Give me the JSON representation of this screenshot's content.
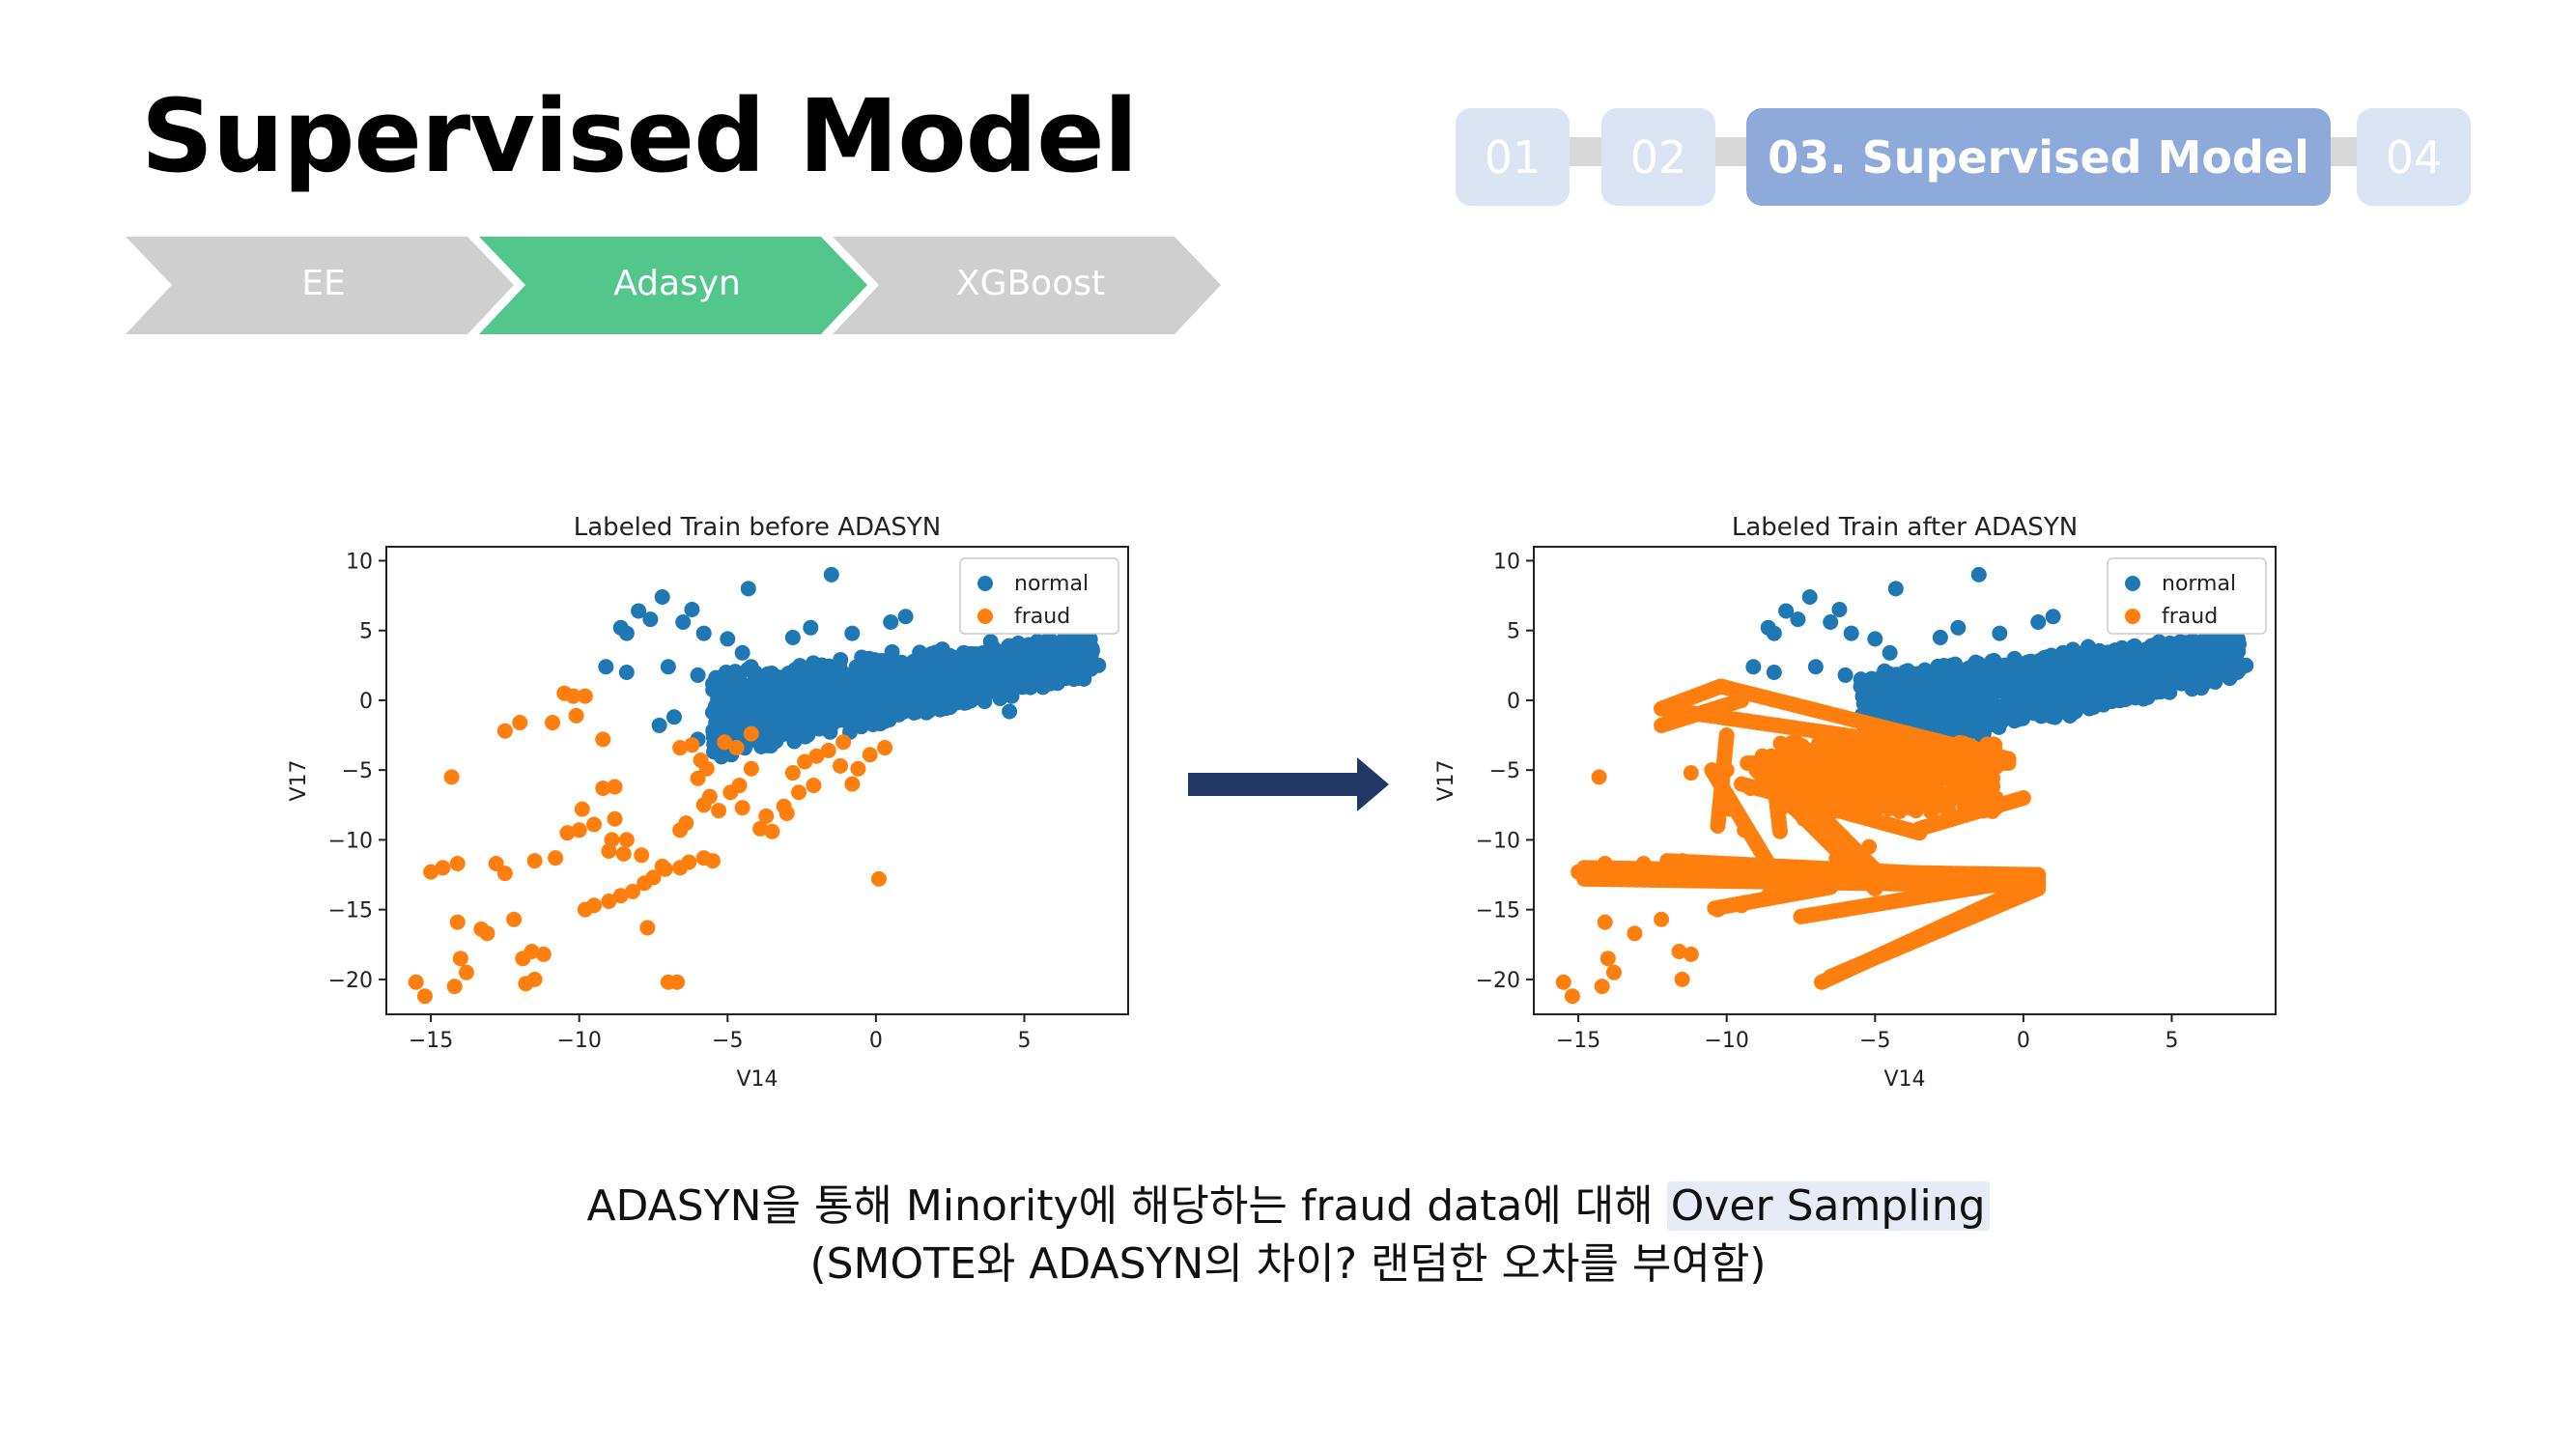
{
  "slide": {
    "title": "Supervised Model",
    "tracker": [
      {
        "label": "01",
        "active": false
      },
      {
        "label": "02",
        "active": false
      },
      {
        "label": "03. Supervised Model",
        "active": true
      },
      {
        "label": "04",
        "active": false
      }
    ],
    "steps": [
      {
        "label": "EE",
        "active": false
      },
      {
        "label": "Adasyn",
        "active": true
      },
      {
        "label": "XGBoost",
        "active": false
      }
    ],
    "colors": {
      "step_active": "#52c68b",
      "step_inactive": "#d0cfd0",
      "tracker_active": "#8eaadb",
      "tracker_inactive": "#dbe4f3",
      "arrow": "#1f3864",
      "normal": "#1f77b4",
      "fraud": "#ff7f0e"
    },
    "caption_line1_prefix": "ADASYN을 통해 Minority에 해당하는 fraud data에 대해",
    "caption_line1_highlight": "Over Sampling",
    "caption_line2": "(SMOTE와 ADASYN의 차이? 랜덤한 오차를 부여함)",
    "arrow_icon": "right-arrow-icon"
  },
  "chart_data": [
    {
      "type": "scatter",
      "title": "Labeled Train before ADASYN",
      "xlabel": "V14",
      "ylabel": "V17",
      "xlim": [
        -16.5,
        8.5
      ],
      "ylim": [
        -22.5,
        11
      ],
      "xticks": [
        -15,
        -10,
        -5,
        0,
        5
      ],
      "yticks": [
        10,
        5,
        0,
        -5,
        -10,
        -15,
        -20
      ],
      "legend": "top-right",
      "series": [
        {
          "name": "normal",
          "color": "#1f77b4",
          "points": [
            [
              -1.5,
              9
            ],
            [
              -4.3,
              8
            ],
            [
              -7.2,
              7.4
            ],
            [
              -8,
              6.4
            ],
            [
              -7.6,
              5.8
            ],
            [
              -8.6,
              5.2
            ],
            [
              -8.4,
              4.8
            ],
            [
              -6.2,
              6.5
            ],
            [
              -6.5,
              5.6
            ],
            [
              -5.8,
              4.8
            ],
            [
              -5,
              4.4
            ],
            [
              -4.5,
              3.4
            ],
            [
              -2.8,
              4.5
            ],
            [
              -2.2,
              5.2
            ],
            [
              -9.1,
              2.4
            ],
            [
              -8.4,
              2
            ],
            [
              -7,
              2.4
            ],
            [
              -6,
              1.8
            ],
            [
              -5.2,
              0.4
            ],
            [
              -6.8,
              -1.2
            ],
            [
              -7.3,
              -1.8
            ],
            [
              -6,
              -2.8
            ],
            [
              -2.5,
              -1.5
            ],
            [
              0.3,
              -1.5
            ],
            [
              1.2,
              -0.5
            ],
            [
              2.5,
              -0.5
            ],
            [
              4.5,
              -0.8
            ],
            [
              7.5,
              2.5
            ],
            [
              6,
              2.8
            ],
            [
              -0.8,
              4.8
            ],
            [
              0.5,
              5.6
            ],
            [
              1,
              6
            ]
          ]
        },
        {
          "name": "fraud",
          "color": "#ff7f0e",
          "points": [
            [
              -10.5,
              0.5
            ],
            [
              -10.2,
              0.3
            ],
            [
              -9.8,
              0.3
            ],
            [
              -10.1,
              -1.1
            ],
            [
              -10.9,
              -1.6
            ],
            [
              -12,
              -1.6
            ],
            [
              -12.5,
              -2.2
            ],
            [
              -9.2,
              -2.8
            ],
            [
              -14.3,
              -5.5
            ],
            [
              -15,
              -12.3
            ],
            [
              -14.6,
              -12
            ],
            [
              -14.1,
              -11.7
            ],
            [
              -12.8,
              -11.7
            ],
            [
              -12.5,
              -12.4
            ],
            [
              -11.5,
              -11.5
            ],
            [
              -10.8,
              -11.3
            ],
            [
              -10.4,
              -9.5
            ],
            [
              -10,
              -9.3
            ],
            [
              -9.5,
              -8.9
            ],
            [
              -8.8,
              -8.5
            ],
            [
              -9.9,
              -7.8
            ],
            [
              -9.2,
              -6.3
            ],
            [
              -8.8,
              -6.2
            ],
            [
              -9.8,
              -15
            ],
            [
              -9.5,
              -14.7
            ],
            [
              -9,
              -14.4
            ],
            [
              -8.6,
              -14
            ],
            [
              -8.2,
              -13.7
            ],
            [
              -7.8,
              -13.1
            ],
            [
              -7.5,
              -12.7
            ],
            [
              -7.9,
              -11.1
            ],
            [
              -8.5,
              -11
            ],
            [
              -8.4,
              -10
            ],
            [
              -8.9,
              -10
            ],
            [
              -9,
              -10.8
            ],
            [
              -14.1,
              -15.9
            ],
            [
              -13.1,
              -16.7
            ],
            [
              -13.3,
              -16.4
            ],
            [
              -12.2,
              -15.7
            ],
            [
              -14,
              -18.5
            ],
            [
              -13.8,
              -19.5
            ],
            [
              -14.2,
              -20.5
            ],
            [
              -15.5,
              -20.2
            ],
            [
              -15.2,
              -21.2
            ],
            [
              -11.6,
              -18
            ],
            [
              -11.2,
              -18.2
            ],
            [
              -11.9,
              -18.5
            ],
            [
              -11.5,
              -20
            ],
            [
              -11.8,
              -20.3
            ],
            [
              -7.7,
              -16.3
            ],
            [
              -7,
              -20.2
            ],
            [
              -6.7,
              -20.2
            ],
            [
              -7.1,
              -12.1
            ],
            [
              -7.2,
              -11.9
            ],
            [
              -6.6,
              -12
            ],
            [
              -6.3,
              -11.6
            ],
            [
              -5.8,
              -11.3
            ],
            [
              -5.5,
              -11.5
            ],
            [
              -6.4,
              -8.8
            ],
            [
              -6.6,
              -9.3
            ],
            [
              -5.8,
              -7.5
            ],
            [
              -5.6,
              -6.9
            ],
            [
              -6,
              -5.6
            ],
            [
              -5.7,
              -4.9
            ],
            [
              -5.9,
              -4.3
            ],
            [
              -6.6,
              -3.4
            ],
            [
              -6.2,
              -3.2
            ],
            [
              -5.1,
              -3
            ],
            [
              -4.7,
              -3.4
            ],
            [
              -4.2,
              -2.4
            ],
            [
              -4.2,
              -4.9
            ],
            [
              -4.6,
              -6.1
            ],
            [
              -4.9,
              -6.6
            ],
            [
              -4.5,
              -7.7
            ],
            [
              -5.3,
              -7.9
            ],
            [
              -3.7,
              -8.3
            ],
            [
              -3.9,
              -9.2
            ],
            [
              -3.5,
              -9.4
            ],
            [
              -3,
              -8.1
            ],
            [
              -2.8,
              -5.2
            ],
            [
              -2.4,
              -4.4
            ],
            [
              -2,
              -4
            ],
            [
              -1.6,
              -3.6
            ],
            [
              -1.1,
              -3
            ],
            [
              -1.2,
              -4.7
            ],
            [
              -2.1,
              -6.1
            ],
            [
              -2.6,
              -6.6
            ],
            [
              -3.1,
              -7.6
            ],
            [
              -0.8,
              -6
            ],
            [
              -0.6,
              -4.9
            ],
            [
              -0.2,
              -3.9
            ],
            [
              0.3,
              -3.4
            ],
            [
              0.1,
              -12.8
            ]
          ]
        }
      ]
    },
    {
      "type": "scatter",
      "title": "Labeled Train after ADASYN",
      "xlabel": "V14",
      "ylabel": "V17",
      "xlim": [
        -16.5,
        8.5
      ],
      "ylim": [
        -22.5,
        11
      ],
      "xticks": [
        -15,
        -10,
        -5,
        0,
        5
      ],
      "yticks": [
        10,
        5,
        0,
        -5,
        -10,
        -15,
        -20
      ],
      "legend": "top-right",
      "series": [
        {
          "name": "normal",
          "color": "#1f77b4",
          "points": [
            [
              -1.5,
              9
            ],
            [
              -4.3,
              8
            ],
            [
              -7.2,
              7.4
            ],
            [
              -8,
              6.4
            ],
            [
              -7.6,
              5.8
            ],
            [
              -8.6,
              5.2
            ],
            [
              -8.4,
              4.8
            ],
            [
              -6.2,
              6.5
            ],
            [
              -6.5,
              5.6
            ],
            [
              -5.8,
              4.8
            ],
            [
              -5,
              4.4
            ],
            [
              -4.5,
              3.4
            ],
            [
              -2.8,
              4.5
            ],
            [
              -2.2,
              5.2
            ],
            [
              -9.1,
              2.4
            ],
            [
              -8.4,
              2
            ],
            [
              -7,
              2.4
            ],
            [
              -6,
              1.8
            ],
            [
              -5.2,
              0.4
            ],
            [
              7.5,
              2.5
            ],
            [
              6,
              2.8
            ],
            [
              -0.8,
              4.8
            ],
            [
              0.5,
              5.6
            ],
            [
              1,
              6
            ]
          ]
        },
        {
          "name": "fraud",
          "color": "#ff7f0e",
          "points": [
            [
              -14.3,
              -5.5
            ],
            [
              -15,
              -12.3
            ],
            [
              -14.1,
              -11.7
            ],
            [
              -12.8,
              -11.7
            ],
            [
              -12.5,
              -12.4
            ],
            [
              -11.5,
              -11.5
            ],
            [
              -11.2,
              -5.2
            ],
            [
              -10,
              -5
            ],
            [
              -9.4,
              -9.3
            ],
            [
              -9.9,
              -7.8
            ],
            [
              -9.2,
              -6.3
            ],
            [
              -10.3,
              -15
            ],
            [
              -9.5,
              -14.7
            ],
            [
              -8.6,
              -14
            ],
            [
              -14.1,
              -15.9
            ],
            [
              -13.1,
              -16.7
            ],
            [
              -12.2,
              -15.7
            ],
            [
              -14,
              -18.5
            ],
            [
              -13.8,
              -19.5
            ],
            [
              -14.2,
              -20.5
            ],
            [
              -15.5,
              -20.2
            ],
            [
              -15.2,
              -21.2
            ],
            [
              -11.6,
              -18
            ],
            [
              -11.2,
              -18.2
            ],
            [
              -11.5,
              -20
            ],
            [
              -7.4,
              -8.5
            ],
            [
              -6.6,
              -9.3
            ],
            [
              -5.8,
              -7.5
            ],
            [
              -6.3,
              -11.3
            ],
            [
              -6.6,
              -10
            ],
            [
              -6.9,
              -12.1
            ],
            [
              -5.2,
              -10.5
            ]
          ]
        }
      ]
    }
  ]
}
